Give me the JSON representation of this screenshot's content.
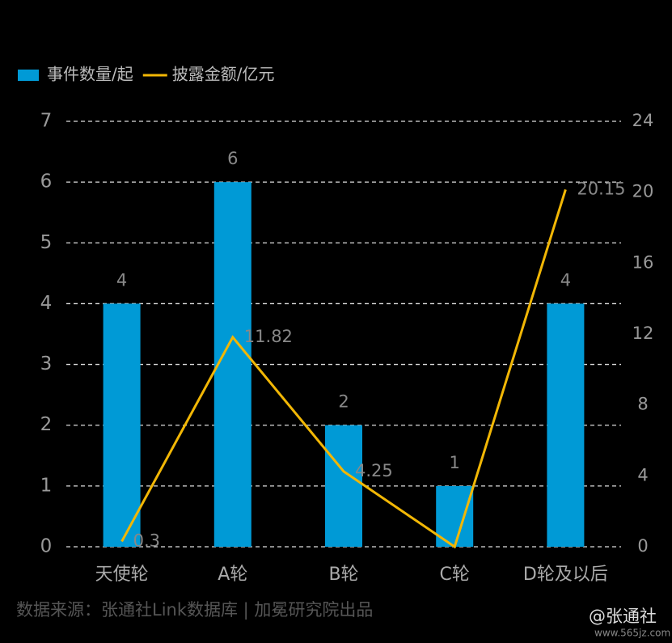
{
  "chart_data": {
    "type": "bar",
    "categories": [
      "天使轮",
      "A轮",
      "B轮",
      "C轮",
      "D轮及以后"
    ],
    "series": [
      {
        "name": "事件数量/起",
        "type": "bar",
        "color": "#009ad6",
        "values": [
          4,
          6,
          2,
          1,
          4
        ]
      },
      {
        "name": "披露金额/亿元",
        "type": "line",
        "axis": "y2",
        "color": "#f2b705",
        "values": [
          0.3,
          11.82,
          4.25,
          0,
          20.15
        ],
        "value_labels": [
          "0.3",
          "11.82",
          "4.25",
          null,
          "20.15"
        ]
      }
    ],
    "ylim": [
      0,
      7
    ],
    "yticks": [
      0,
      1,
      2,
      3,
      4,
      5,
      6,
      7
    ],
    "y2lim": [
      0,
      24
    ],
    "y2ticks": [
      0,
      4,
      8,
      12,
      16,
      20,
      24
    ],
    "grid": true,
    "legend": "top-left",
    "source": "数据来源：张通社Link数据库 | 加冕研究院出品",
    "watermark": [
      "@张通社",
      "www.565jz.com"
    ]
  }
}
